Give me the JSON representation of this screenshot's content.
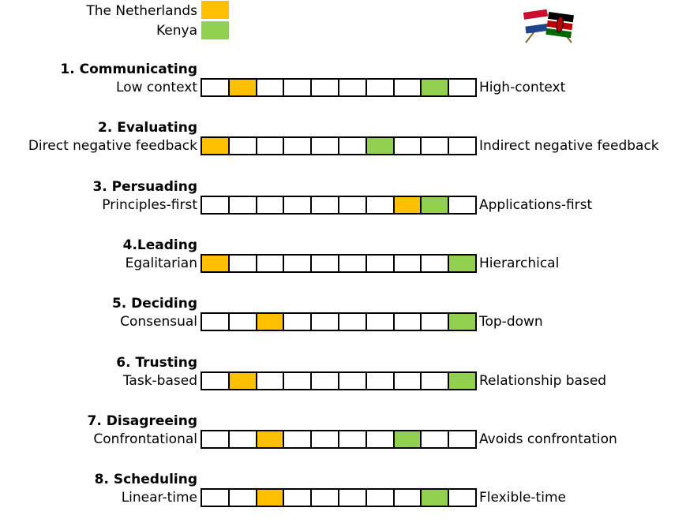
{
  "legend": [
    {
      "label": "The Netherlands",
      "color": "#FFC000"
    },
    {
      "label": "Kenya",
      "color": "#92D050"
    }
  ],
  "flags_icon": "netherlands-kenya-crossed-flags-icon",
  "chart_data": {
    "type": "table",
    "scale_positions": 10,
    "series": [
      {
        "name": "The Netherlands",
        "color": "#FFC000",
        "values": [
          2,
          1,
          8,
          1,
          3,
          2,
          3,
          3
        ]
      },
      {
        "name": "Kenya",
        "color": "#92D050",
        "values": [
          9,
          7,
          9,
          10,
          10,
          10,
          8,
          9
        ]
      }
    ],
    "dimensions": [
      {
        "title": "1. Communicating",
        "left": "Low context",
        "right": "High-context"
      },
      {
        "title": "2. Evaluating",
        "left": "Direct negative feedback",
        "right": "Indirect negative feedback"
      },
      {
        "title": "3. Persuading",
        "left": "Principles-first",
        "right": "Applications-first"
      },
      {
        "title": "4.Leading",
        "left": "Egalitarian",
        "right": "Hierarchical"
      },
      {
        "title": "5. Deciding",
        "left": "Consensual",
        "right": "Top-down"
      },
      {
        "title": "6. Trusting",
        "left": "Task-based",
        "right": "Relationship based"
      },
      {
        "title": "7. Disagreeing",
        "left": "Confrontational",
        "right": "Avoids confrontation"
      },
      {
        "title": "8. Scheduling",
        "left": "Linear-time",
        "right": "Flexible-time"
      }
    ]
  }
}
